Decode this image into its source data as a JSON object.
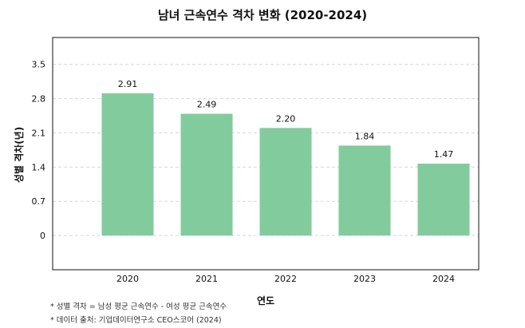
{
  "chart_data": {
    "type": "bar",
    "title": "남녀 근속연수 격차 변화 (2020-2024)",
    "xlabel": "연도",
    "ylabel": "성별 격차(년)",
    "categories": [
      "2020",
      "2021",
      "2022",
      "2023",
      "2024"
    ],
    "values": [
      2.91,
      2.49,
      2.2,
      1.84,
      1.47
    ],
    "value_labels": [
      "2.91",
      "2.49",
      "2.20",
      "1.84",
      "1.47"
    ],
    "yticks": [
      "0",
      "0.7",
      "1.4",
      "2.1",
      "2.8",
      "3.5"
    ],
    "ytick_values": [
      0,
      0.7,
      1.4,
      2.1,
      2.8,
      3.5
    ],
    "ylim": [
      -0.7,
      4.05
    ],
    "grid": "horizontal dashed",
    "colors": {
      "bar": "#82cb9d",
      "grid": "#d8d8d8",
      "frame": "#111111"
    }
  },
  "notes": [
    "* 성별 격차 = 남성 평균 근속연수 - 여성 평균 근속연수",
    "* 데이터 출처: 기업데이터연구소 CEO스코어 (2024)"
  ]
}
